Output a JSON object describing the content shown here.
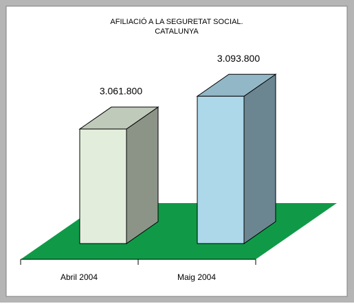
{
  "chart_data": {
    "type": "bar3d",
    "title": [
      "AFILIACIÓ A LA SEGURETAT SOCIAL.",
      "CATALUNYA"
    ],
    "categories": [
      "Abril 2004",
      "Maig 2004"
    ],
    "values": [
      3061800,
      3093800
    ],
    "value_labels": [
      "3.061.800",
      "3.093.800"
    ],
    "colors": [
      "#e2eedb",
      "#acd8ea"
    ],
    "floor_color": "#109a48",
    "ylim": [
      2950000,
      3100000
    ]
  }
}
